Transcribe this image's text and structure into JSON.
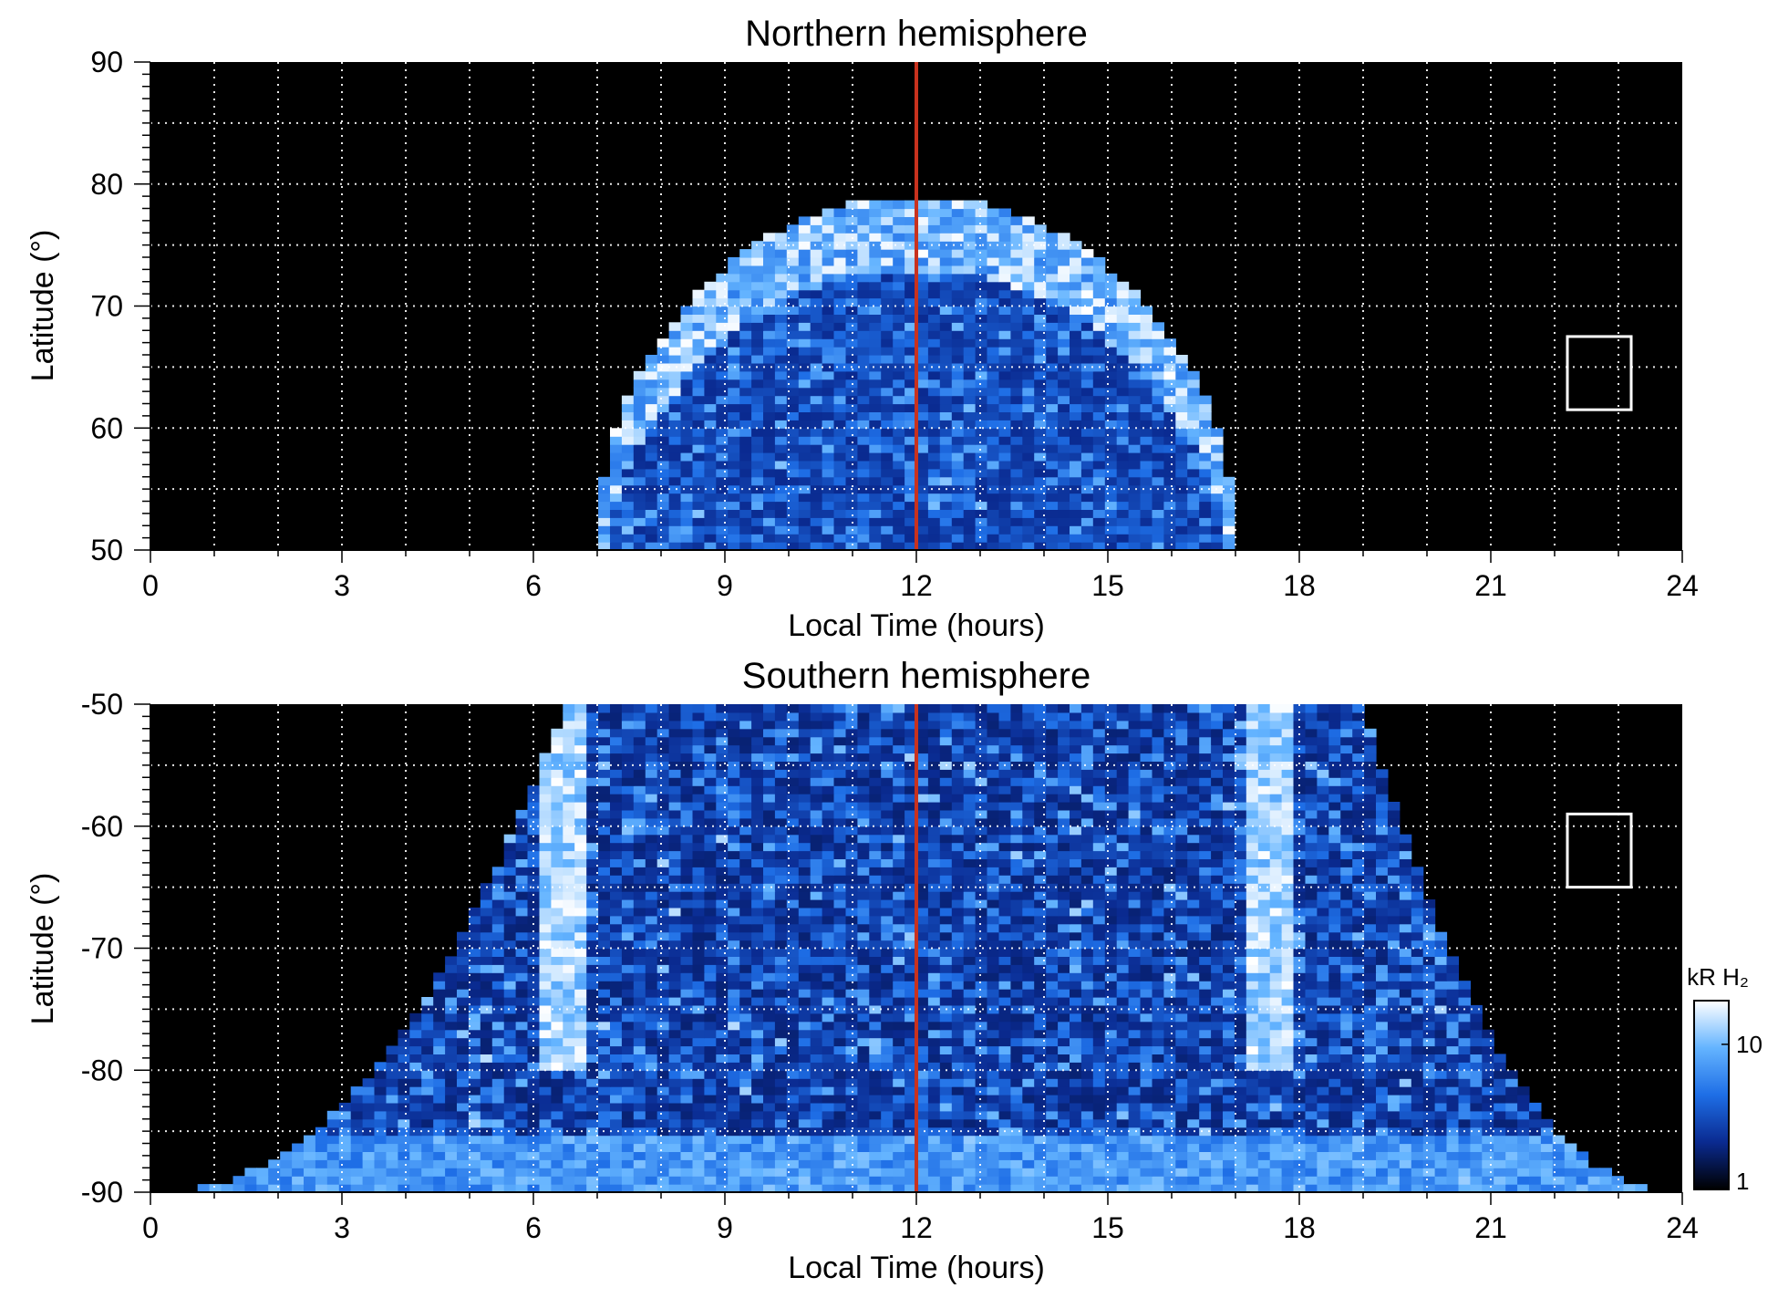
{
  "chart_data": [
    {
      "type": "heatmap",
      "title": "Northern hemisphere",
      "xlabel": "Local Time (hours)",
      "ylabel": "Latitude (°)",
      "xlim": [
        0,
        24
      ],
      "ylim": [
        50,
        90
      ],
      "xticks": [
        "0",
        "3",
        "6",
        "9",
        "12",
        "15",
        "18",
        "21",
        "24"
      ],
      "yticks": [
        "50",
        "60",
        "70",
        "80",
        "90"
      ],
      "grid": true,
      "background": "#000000",
      "marker_line": {
        "x": 12,
        "color": "#c8321e"
      },
      "emission_region": {
        "type": "dome",
        "x_range": [
          7,
          17
        ],
        "peak_latitude": 79,
        "inner_ring_latitude": 73,
        "colormap": "black-blue-white"
      },
      "reference_box": {
        "x_range": [
          22.2,
          23.2
        ],
        "y_range": [
          61.5,
          67.5
        ],
        "color": "#ffffff"
      }
    },
    {
      "type": "heatmap",
      "title": "Southern hemisphere",
      "xlabel": "Local Time (hours)",
      "ylabel": "Latitude (°)",
      "xlim": [
        0,
        24
      ],
      "ylim": [
        -90,
        -50
      ],
      "xticks": [
        "0",
        "3",
        "6",
        "9",
        "12",
        "15",
        "18",
        "21",
        "24"
      ],
      "yticks": [
        "-50",
        "-60",
        "-70",
        "-80",
        "-90"
      ],
      "grid": true,
      "background": "#000000",
      "marker_line": {
        "x": 12,
        "color": "#c8321e"
      },
      "emission_region": {
        "type": "bowl",
        "x_range_top": [
          6.5,
          19
        ],
        "x_range_bottom": [
          0,
          24
        ],
        "bright_arcs_local_time": [
          6.4,
          17.6
        ],
        "colormap": "black-blue-white"
      },
      "reference_box": {
        "x_range": [
          22.2,
          23.2
        ],
        "y_range": [
          -65,
          -59
        ],
        "color": "#ffffff"
      },
      "colorbar": {
        "label": "kR H₂",
        "scale": "log",
        "range": [
          1,
          20
        ],
        "ticks": [
          "1",
          "10"
        ],
        "colors": [
          "#000000",
          "#0a2a90",
          "#1e6ee6",
          "#64b4ff",
          "#ffffff"
        ]
      }
    }
  ]
}
